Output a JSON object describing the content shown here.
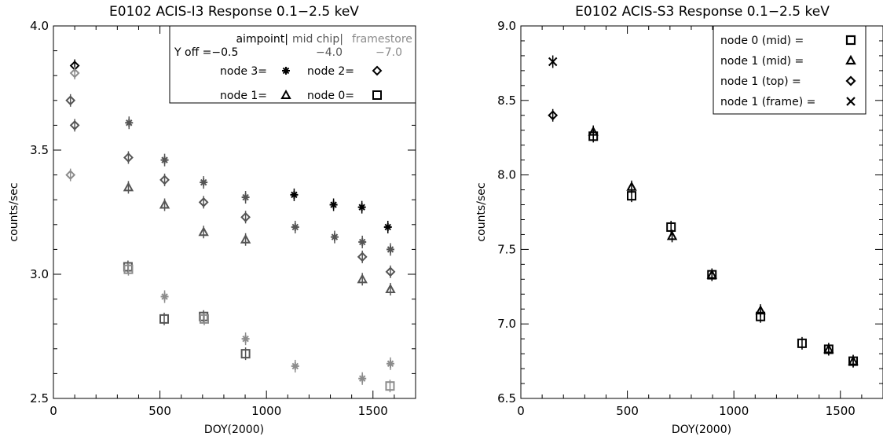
{
  "chart_data": [
    {
      "type": "scatter",
      "title": "E0102 ACIS-I3 Response 0.1−2.5 keV",
      "xlabel": "DOY(2000)",
      "ylabel": "counts/sec",
      "xlim": [
        0,
        1700
      ],
      "ylim": [
        2.5,
        4.0
      ],
      "xticks": [
        "0",
        "500",
        "1000",
        "1500"
      ],
      "yticks": [
        "2.5",
        "3.0",
        "3.5",
        "4.0"
      ],
      "legend_placement": "top-right",
      "legend": {
        "header_row": [
          "aimpoint|",
          "mid chip|",
          "framestore"
        ],
        "yoff_row": [
          "Y off =−0.5",
          "−4.0",
          "−7.0"
        ],
        "node_entries": [
          {
            "label": "node 3=",
            "marker": "asterisk"
          },
          {
            "label": "node 2=",
            "marker": "diamond"
          },
          {
            "label": "node 1=",
            "marker": "triangle"
          },
          {
            "label": "node 0=",
            "marker": "square"
          }
        ]
      },
      "tone_colors": {
        "aimpoint": "#000000",
        "mid_chip": "#555555",
        "framestore": "#8c8c8c"
      },
      "series": [
        {
          "marker": "asterisk",
          "tone": "aimpoint",
          "x": [
            1130,
            1315,
            1448,
            1570
          ],
          "y": [
            3.32,
            3.28,
            3.27,
            3.19
          ]
        },
        {
          "marker": "asterisk",
          "tone": "mid_chip",
          "x": [
            355,
            522,
            705,
            902,
            1135,
            1320,
            1450,
            1582
          ],
          "y": [
            3.61,
            3.46,
            3.37,
            3.31,
            3.19,
            3.15,
            3.13,
            3.1
          ]
        },
        {
          "marker": "asterisk",
          "tone": "framestore",
          "x": [
            522,
            902,
            1135,
            1450,
            1582
          ],
          "y": [
            2.91,
            2.74,
            2.63,
            2.58,
            2.64
          ]
        },
        {
          "marker": "diamond",
          "tone": "aimpoint",
          "x": [
            100
          ],
          "y": [
            3.84
          ]
        },
        {
          "marker": "diamond",
          "tone": "mid_chip",
          "x": [
            80,
            100,
            352,
            522,
            705,
            902,
            1450,
            1582
          ],
          "y": [
            3.7,
            3.6,
            3.47,
            3.38,
            3.29,
            3.23,
            3.07,
            3.01
          ]
        },
        {
          "marker": "diamond",
          "tone": "framestore",
          "x": [
            80,
            100
          ],
          "y": [
            3.4,
            3.81
          ]
        },
        {
          "marker": "triangle",
          "tone": "mid_chip",
          "x": [
            352,
            522,
            705,
            902,
            1450,
            1582
          ],
          "y": [
            3.35,
            3.28,
            3.17,
            3.14,
            2.98,
            2.94
          ]
        },
        {
          "marker": "square",
          "tone": "mid_chip",
          "x": [
            350,
            520,
            705,
            902
          ],
          "y": [
            3.03,
            2.82,
            2.83,
            2.68
          ]
        },
        {
          "marker": "square",
          "tone": "framestore",
          "x": [
            352,
            708,
            1580
          ],
          "y": [
            3.02,
            2.82,
            2.55
          ]
        }
      ]
    },
    {
      "type": "scatter",
      "title": "E0102 ACIS-S3 Response 0.1−2.5 keV",
      "xlabel": "DOY(2000)",
      "ylabel": "counts/sec",
      "xlim": [
        0,
        1700
      ],
      "ylim": [
        6.5,
        9.0
      ],
      "xticks": [
        "0",
        "500",
        "1000",
        "1500"
      ],
      "yticks": [
        "6.5",
        "7.0",
        "7.5",
        "8.0",
        "8.5",
        "9.0"
      ],
      "legend_placement": "top-right",
      "legend": {
        "entries": [
          {
            "label": "node 0 (mid)  =",
            "marker": "square"
          },
          {
            "label": "node 1 (mid)  =",
            "marker": "triangle"
          },
          {
            "label": "node 1 (top)  =",
            "marker": "diamond"
          },
          {
            "label": "node 1 (frame) =",
            "marker": "x"
          }
        ]
      },
      "series": [
        {
          "name": "node 0 (mid)",
          "marker": "square",
          "x": [
            340,
            520,
            705,
            897,
            1125,
            1320,
            1445,
            1560
          ],
          "y": [
            8.26,
            7.86,
            7.65,
            7.33,
            7.05,
            6.87,
            6.83,
            6.75
          ]
        },
        {
          "name": "node 1 (mid)",
          "marker": "triangle",
          "x": [
            340,
            520,
            710,
            897,
            1125,
            1445,
            1560
          ],
          "y": [
            8.29,
            7.92,
            7.59,
            7.33,
            7.09,
            6.83,
            6.75
          ]
        },
        {
          "name": "node 1 (top)",
          "marker": "diamond",
          "x": [
            150
          ],
          "y": [
            8.4
          ]
        },
        {
          "name": "node 1 (frame)",
          "marker": "x",
          "x": [
            150
          ],
          "y": [
            8.76
          ]
        }
      ]
    }
  ]
}
